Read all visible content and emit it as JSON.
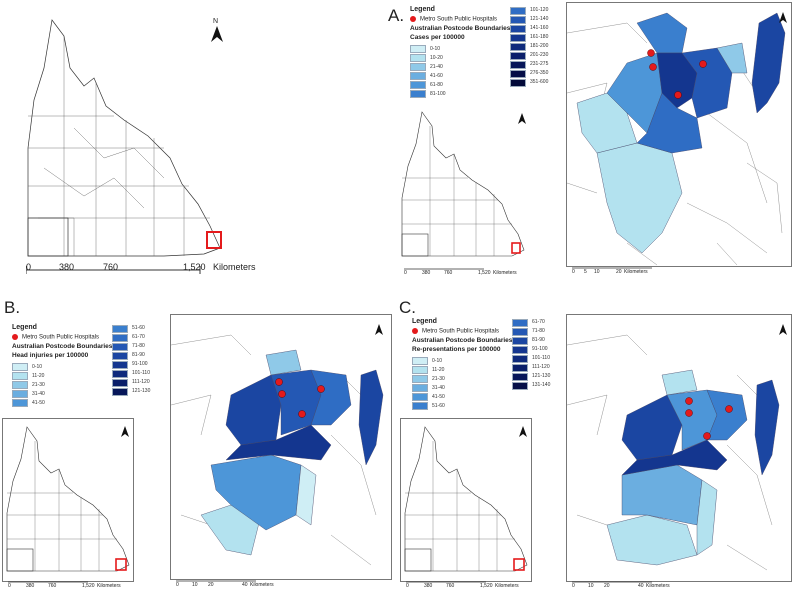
{
  "panels": [
    {
      "id": "overview",
      "letter": "",
      "scale": {
        "ticks": [
          "0",
          "380",
          "760",
          "1,520"
        ],
        "unit": "Kilometers"
      }
    },
    {
      "id": "A",
      "letter": "A.",
      "legend": {
        "title": "Legend",
        "marker_label": "Metro South Public Hospitals",
        "boundaries_label": "Australian Postcode Boundaries",
        "measure_label": "Cases per 100000",
        "classes_col1": [
          "0-10",
          "10-20",
          "21-40",
          "41-60",
          "61-80",
          "81-100"
        ],
        "classes_col2": [
          "101-120",
          "121-140",
          "141-160",
          "161-180",
          "181-200",
          "201-230",
          "231-275",
          "276-350",
          "351-600"
        ]
      },
      "inset_scale": {
        "ticks": [
          "0",
          "380",
          "760",
          "1,520"
        ],
        "unit": "Kilometers"
      },
      "map_scale": {
        "ticks": [
          "0",
          "5",
          "10",
          "20"
        ],
        "unit": "Kilometers"
      }
    },
    {
      "id": "B",
      "letter": "B.",
      "legend": {
        "title": "Legend",
        "marker_label": "Metro South Public Hospitals",
        "boundaries_label": "Australian Postcode Boundaries",
        "measure_label": "Head injuries per 100000",
        "classes_col1": [
          "0-10",
          "11-20",
          "21-30",
          "31-40",
          "41-50"
        ],
        "classes_col2": [
          "51-60",
          "61-70",
          "71-80",
          "81-90",
          "91-100",
          "101-110",
          "111-120",
          "121-130"
        ]
      },
      "inset_scale": {
        "ticks": [
          "0",
          "380",
          "760",
          "1,520"
        ],
        "unit": "Kilometers"
      },
      "map_scale": {
        "ticks": [
          "0",
          "10",
          "20",
          "40"
        ],
        "unit": "Kilometers"
      }
    },
    {
      "id": "C",
      "letter": "C.",
      "legend": {
        "title": "Legend",
        "marker_label": "Metro South Public Hospitals",
        "boundaries_label": "Australian Postcode Boundaries",
        "measure_label": "Re-presentations per 100000",
        "classes_col1": [
          "0-10",
          "11-20",
          "21-30",
          "31-40",
          "41-50",
          "51-60"
        ],
        "classes_col2": [
          "61-70",
          "71-80",
          "81-90",
          "91-100",
          "101-110",
          "111-120",
          "121-130",
          "131-140"
        ]
      },
      "inset_scale": {
        "ticks": [
          "0",
          "380",
          "760",
          "1,520"
        ],
        "unit": "Kilometers"
      },
      "map_scale": {
        "ticks": [
          "0",
          "10",
          "20",
          "40"
        ],
        "unit": "Kilometers"
      }
    }
  ],
  "north_label": "N",
  "colors": {
    "ramp": [
      "#cfeef5",
      "#b3e2ef",
      "#8fc9e8",
      "#6baee0",
      "#4d96d8",
      "#3a7fce",
      "#2f6dc4",
      "#2458b4",
      "#1b46a2",
      "#14368f",
      "#0e2a7c",
      "#0a1f6a",
      "#071659",
      "#050f48",
      "#030a3a"
    ],
    "hospital": "#e41a1c",
    "outline": "#333333"
  }
}
